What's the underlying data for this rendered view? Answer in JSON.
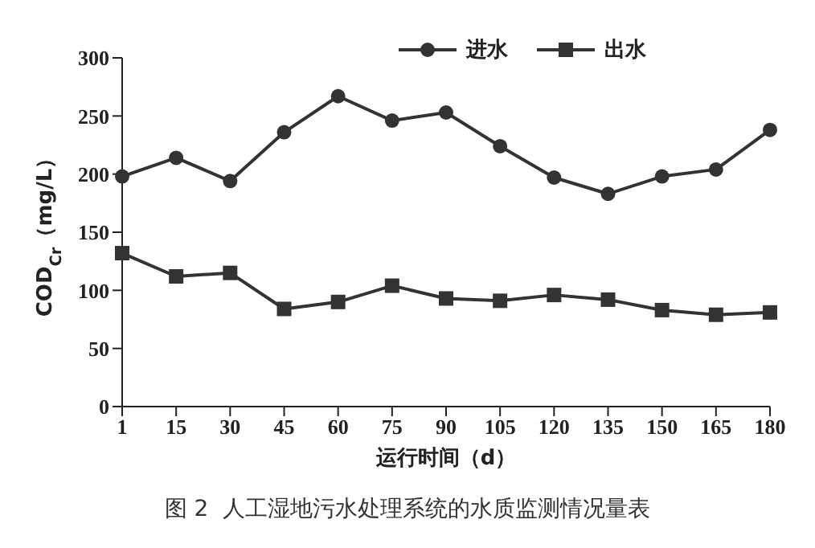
{
  "chart_data": {
    "type": "line",
    "xlabel": "运行时间（d）",
    "ylabel": "COD$_{Cr}$（mg/L）",
    "categories": [
      "1",
      "15",
      "30",
      "45",
      "60",
      "75",
      "90",
      "105",
      "120",
      "135",
      "150",
      "165",
      "180"
    ],
    "series": [
      {
        "name": "进水",
        "color": "#333333",
        "marker": "circle",
        "values": [
          198,
          214,
          194,
          236,
          267,
          246,
          253,
          224,
          197,
          183,
          198,
          204,
          238
        ]
      },
      {
        "name": "出水",
        "color": "#333333",
        "marker": "square",
        "values": [
          132,
          112,
          115,
          84,
          90,
          104,
          93,
          91,
          96,
          92,
          83,
          79,
          81
        ]
      }
    ],
    "ylim": [
      0,
      300
    ],
    "yticks": [
      0,
      50,
      100,
      150,
      200,
      250,
      300
    ],
    "grid": false,
    "legend": "top",
    "line_style": "solid",
    "annotations": [
      "图 2  人工湿地污水处理系统的水质监测情况量表"
    ]
  }
}
